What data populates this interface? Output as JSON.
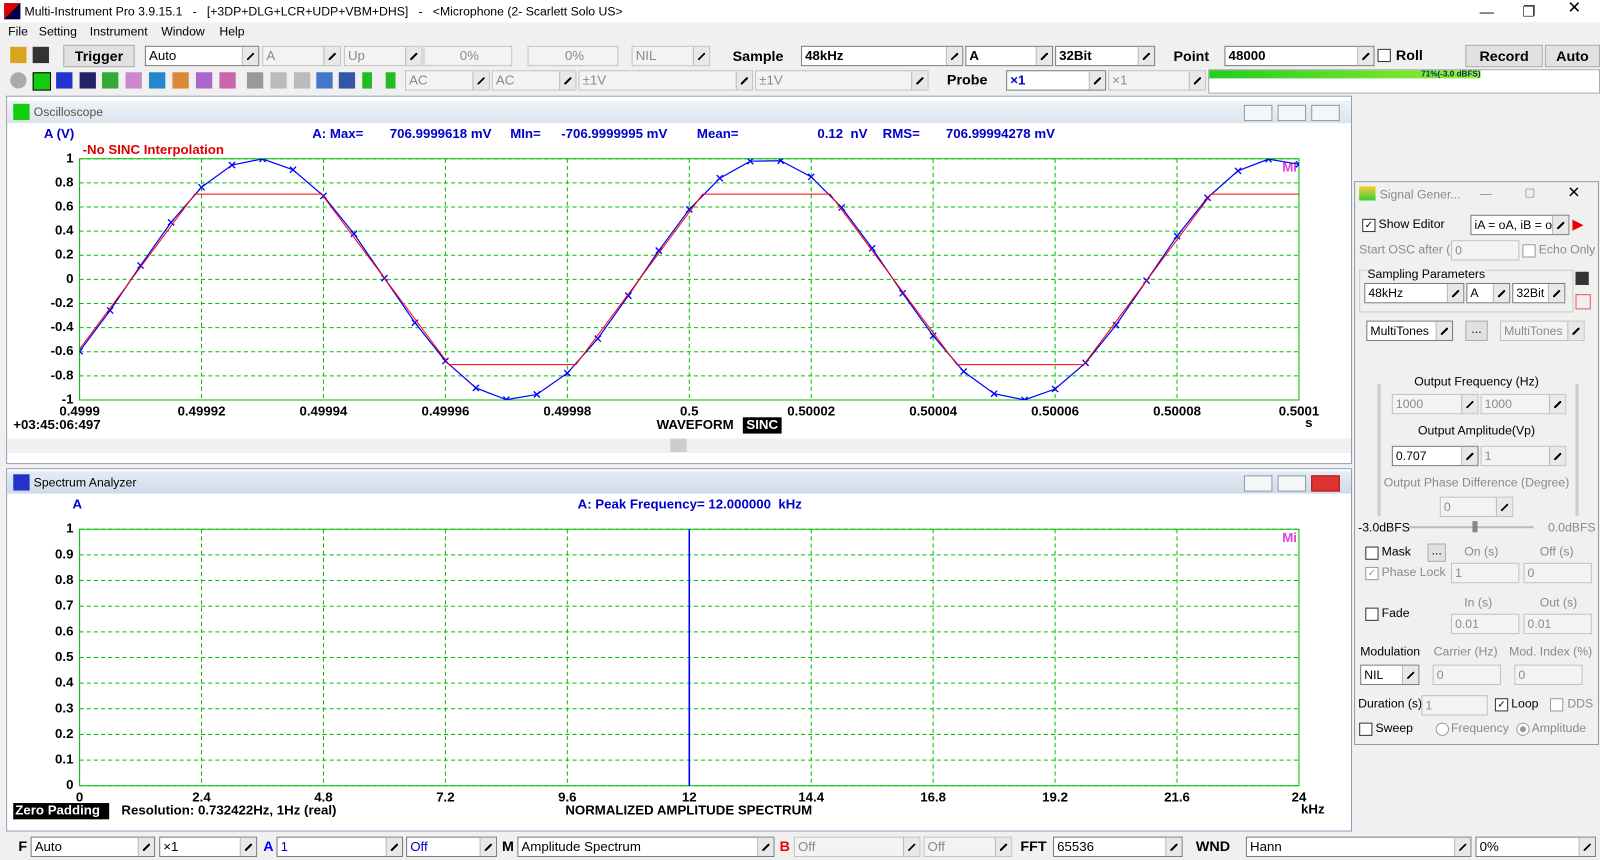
{
  "window": {
    "title": "Multi-Instrument Pro 3.9.15.1   -   [+3DP+DLG+LCR+UDP+VBM+DHS]   -   <Microphone (2- Scarlett Solo US>"
  },
  "menu": [
    "File",
    "Setting",
    "Instrument",
    "Window",
    "Help"
  ],
  "toolbar": {
    "trigger": "Trigger",
    "trigger_mode": "Auto",
    "trigger_channel": "A",
    "trigger_edge": "Up",
    "trigger_level": "0%",
    "trigger_delay": "0%",
    "trigger_option": "NIL",
    "sample_label": "Sample",
    "sample_rate": "48kHz",
    "sample_channel": "A",
    "bit_depth": "32Bit",
    "point_label": "Point",
    "points": "48000",
    "roll": "Roll",
    "record": "Record",
    "auto": "Auto"
  },
  "toolbar2": {
    "coupling_a": "AC",
    "coupling_b": "AC",
    "range_a": "±1V",
    "range_b": "±1V",
    "probe_label": "Probe",
    "probe_a": "×1",
    "probe_b": "×1",
    "level": "71%(-3.0 dBFS)"
  },
  "oscilloscope": {
    "title": "Oscilloscope",
    "y_label": "A (V)",
    "stats": {
      "max_label": "A: Max=",
      "max": "706.9999618 mV",
      "min_label": "MIn=",
      "min": "-706.9999995 mV",
      "mean_label": "Mean=",
      "mean": "0.12  nV",
      "rms_label": "RMS=",
      "rms": "706.99994278 mV"
    },
    "annotation": "-No SINC Interpolation",
    "timestamp": "+03:45:06:497",
    "x_unit": "s",
    "mode": "WAVEFORM",
    "mode_tag": "SINC",
    "logo": "Mi",
    "chart": {
      "type": "line",
      "grid": true,
      "xlim": [
        0.4999,
        0.5001
      ],
      "xticks": [
        0.4999,
        0.49992,
        0.49994,
        0.49996,
        0.49998,
        0.5,
        0.50002,
        0.50004,
        0.50006,
        0.50008,
        0.5001
      ],
      "ylim": [
        -1,
        1
      ],
      "yticks": [
        -1,
        -0.8,
        -0.6,
        -0.4,
        -0.2,
        0,
        0.2,
        0.4,
        0.6,
        0.8,
        1
      ],
      "series": [
        {
          "color": "#0000ff",
          "marker": "x",
          "x": [
            0.4999,
            0.499905,
            0.49991,
            0.499915,
            0.49992,
            0.499925,
            0.49993,
            0.499935,
            0.49994,
            0.499945,
            0.49995,
            0.499955,
            0.49996,
            0.499965,
            0.49997,
            0.499975,
            0.49998,
            0.499985,
            0.49999,
            0.499995,
            0.5,
            0.500005,
            0.50001,
            0.500015,
            0.50002,
            0.500025,
            0.50003,
            0.500035,
            0.50004,
            0.500045,
            0.50005,
            0.500055,
            0.50006,
            0.500065,
            0.50007,
            0.500075,
            0.50008,
            0.500085,
            0.50009,
            0.500095,
            0.5001
          ],
          "values": [
            -0.596,
            -0.258,
            0.115,
            0.473,
            0.764,
            0.948,
            0.999,
            0.909,
            0.692,
            0.378,
            0.01,
            -0.359,
            -0.677,
            -0.9,
            -0.997,
            -0.954,
            -0.777,
            -0.491,
            -0.135,
            0.239,
            0.58,
            0.839,
            0.98,
            0.984,
            0.85,
            0.596,
            0.258,
            -0.115,
            -0.467,
            -0.764,
            -0.948,
            -0.999,
            -0.909,
            -0.692,
            -0.378,
            -0.01,
            0.359,
            0.677,
            0.9,
            0.997,
            0.954
          ]
        },
        {
          "color": "#ff0000",
          "x": [
            0.4998981,
            0.4999189,
            0.4999397,
            0.4999606,
            0.4999814,
            0.5000022,
            0.5000231,
            0.5000439,
            0.5000647,
            0.5000856,
            0.5001064
          ],
          "values": [
            -0.707,
            0.707,
            0.707,
            -0.707,
            -0.707,
            0.707,
            0.707,
            -0.707,
            -0.707,
            0.707,
            0.707
          ]
        }
      ]
    }
  },
  "spectrum": {
    "title": "Spectrum Analyzer",
    "y_label": "A",
    "peak": "A: Peak Frequency= 12.000000  kHz",
    "zero_padding": "Zero Padding",
    "resolution": "Resolution: 0.732422Hz, 1Hz (real)",
    "mode": "NORMALIZED AMPLITUDE SPECTRUM",
    "x_unit": "kHz",
    "logo": "Mi",
    "chart": {
      "type": "stem",
      "grid": true,
      "xlim": [
        0,
        24
      ],
      "xticks": [
        0,
        2.4,
        4.8,
        7.2,
        9.6,
        12,
        14.4,
        16.8,
        19.2,
        21.6,
        24
      ],
      "ylim": [
        0,
        1
      ],
      "yticks": [
        0,
        0.1,
        0.2,
        0.3,
        0.4,
        0.5,
        0.6,
        0.7,
        0.8,
        0.9,
        1
      ],
      "color": "#0000ff",
      "x": [
        12,
        12
      ],
      "values": [
        1,
        0.5
      ]
    }
  },
  "signal_generator": {
    "title": "Signal Gener...",
    "show_editor": "Show Editor",
    "routing": "iA = oA, iB = oB",
    "start_osc_label": "Start OSC after (s)",
    "start_osc": "0",
    "echo_only": "Echo Only",
    "sampling_label": "Sampling Parameters",
    "sample_rate": "48kHz",
    "channel": "A",
    "bit_depth": "32Bit",
    "waveform_a": "MultiTones",
    "more": "...",
    "waveform_b": "MultiTones",
    "frequency_label": "Output Frequency (Hz)",
    "frequency_a": "1000",
    "frequency_b": "1000",
    "amplitude_label": "Output Amplitude(Vp)",
    "amplitude_a": "0.707",
    "amplitude_b": "1",
    "phase_label": "Output Phase Difference (Degree)",
    "phase": "0",
    "level_left": "-3.0dBFS",
    "level_right": "0.0dBFS",
    "mask": "Mask",
    "mask_more": "...",
    "on_label": "On (s)",
    "off_label": "Off (s)",
    "phase_lock": "Phase Lock",
    "on": "1",
    "off": "0",
    "in_label": "In (s)",
    "out_label": "Out (s)",
    "fade": "Fade",
    "fade_in": "0.01",
    "fade_out": "0.01",
    "modulation_label": "Modulation",
    "carrier_label": "Carrier (Hz)",
    "index_label": "Mod. Index (%)",
    "modulation": "NIL",
    "carrier": "0",
    "index": "0",
    "duration_label": "Duration (s)",
    "duration": "1",
    "loop": "Loop",
    "dds": "DDS",
    "sweep": "Sweep",
    "sweep_frequency": "Frequency",
    "sweep_amplitude": "Amplitude"
  },
  "bottom_bar": {
    "f_label": "F",
    "f_mode": "Auto",
    "f_scale": "×1",
    "a_label": "A",
    "a_value": "1",
    "a_off": "Off",
    "m_label": "M",
    "m_mode": "Amplitude Spectrum",
    "b_label": "B",
    "b_value": "Off",
    "b_off": "Off",
    "fft_label": "FFT",
    "fft": "65536",
    "wnd_label": "WND",
    "wnd": "Hann",
    "overlap": "0%"
  }
}
